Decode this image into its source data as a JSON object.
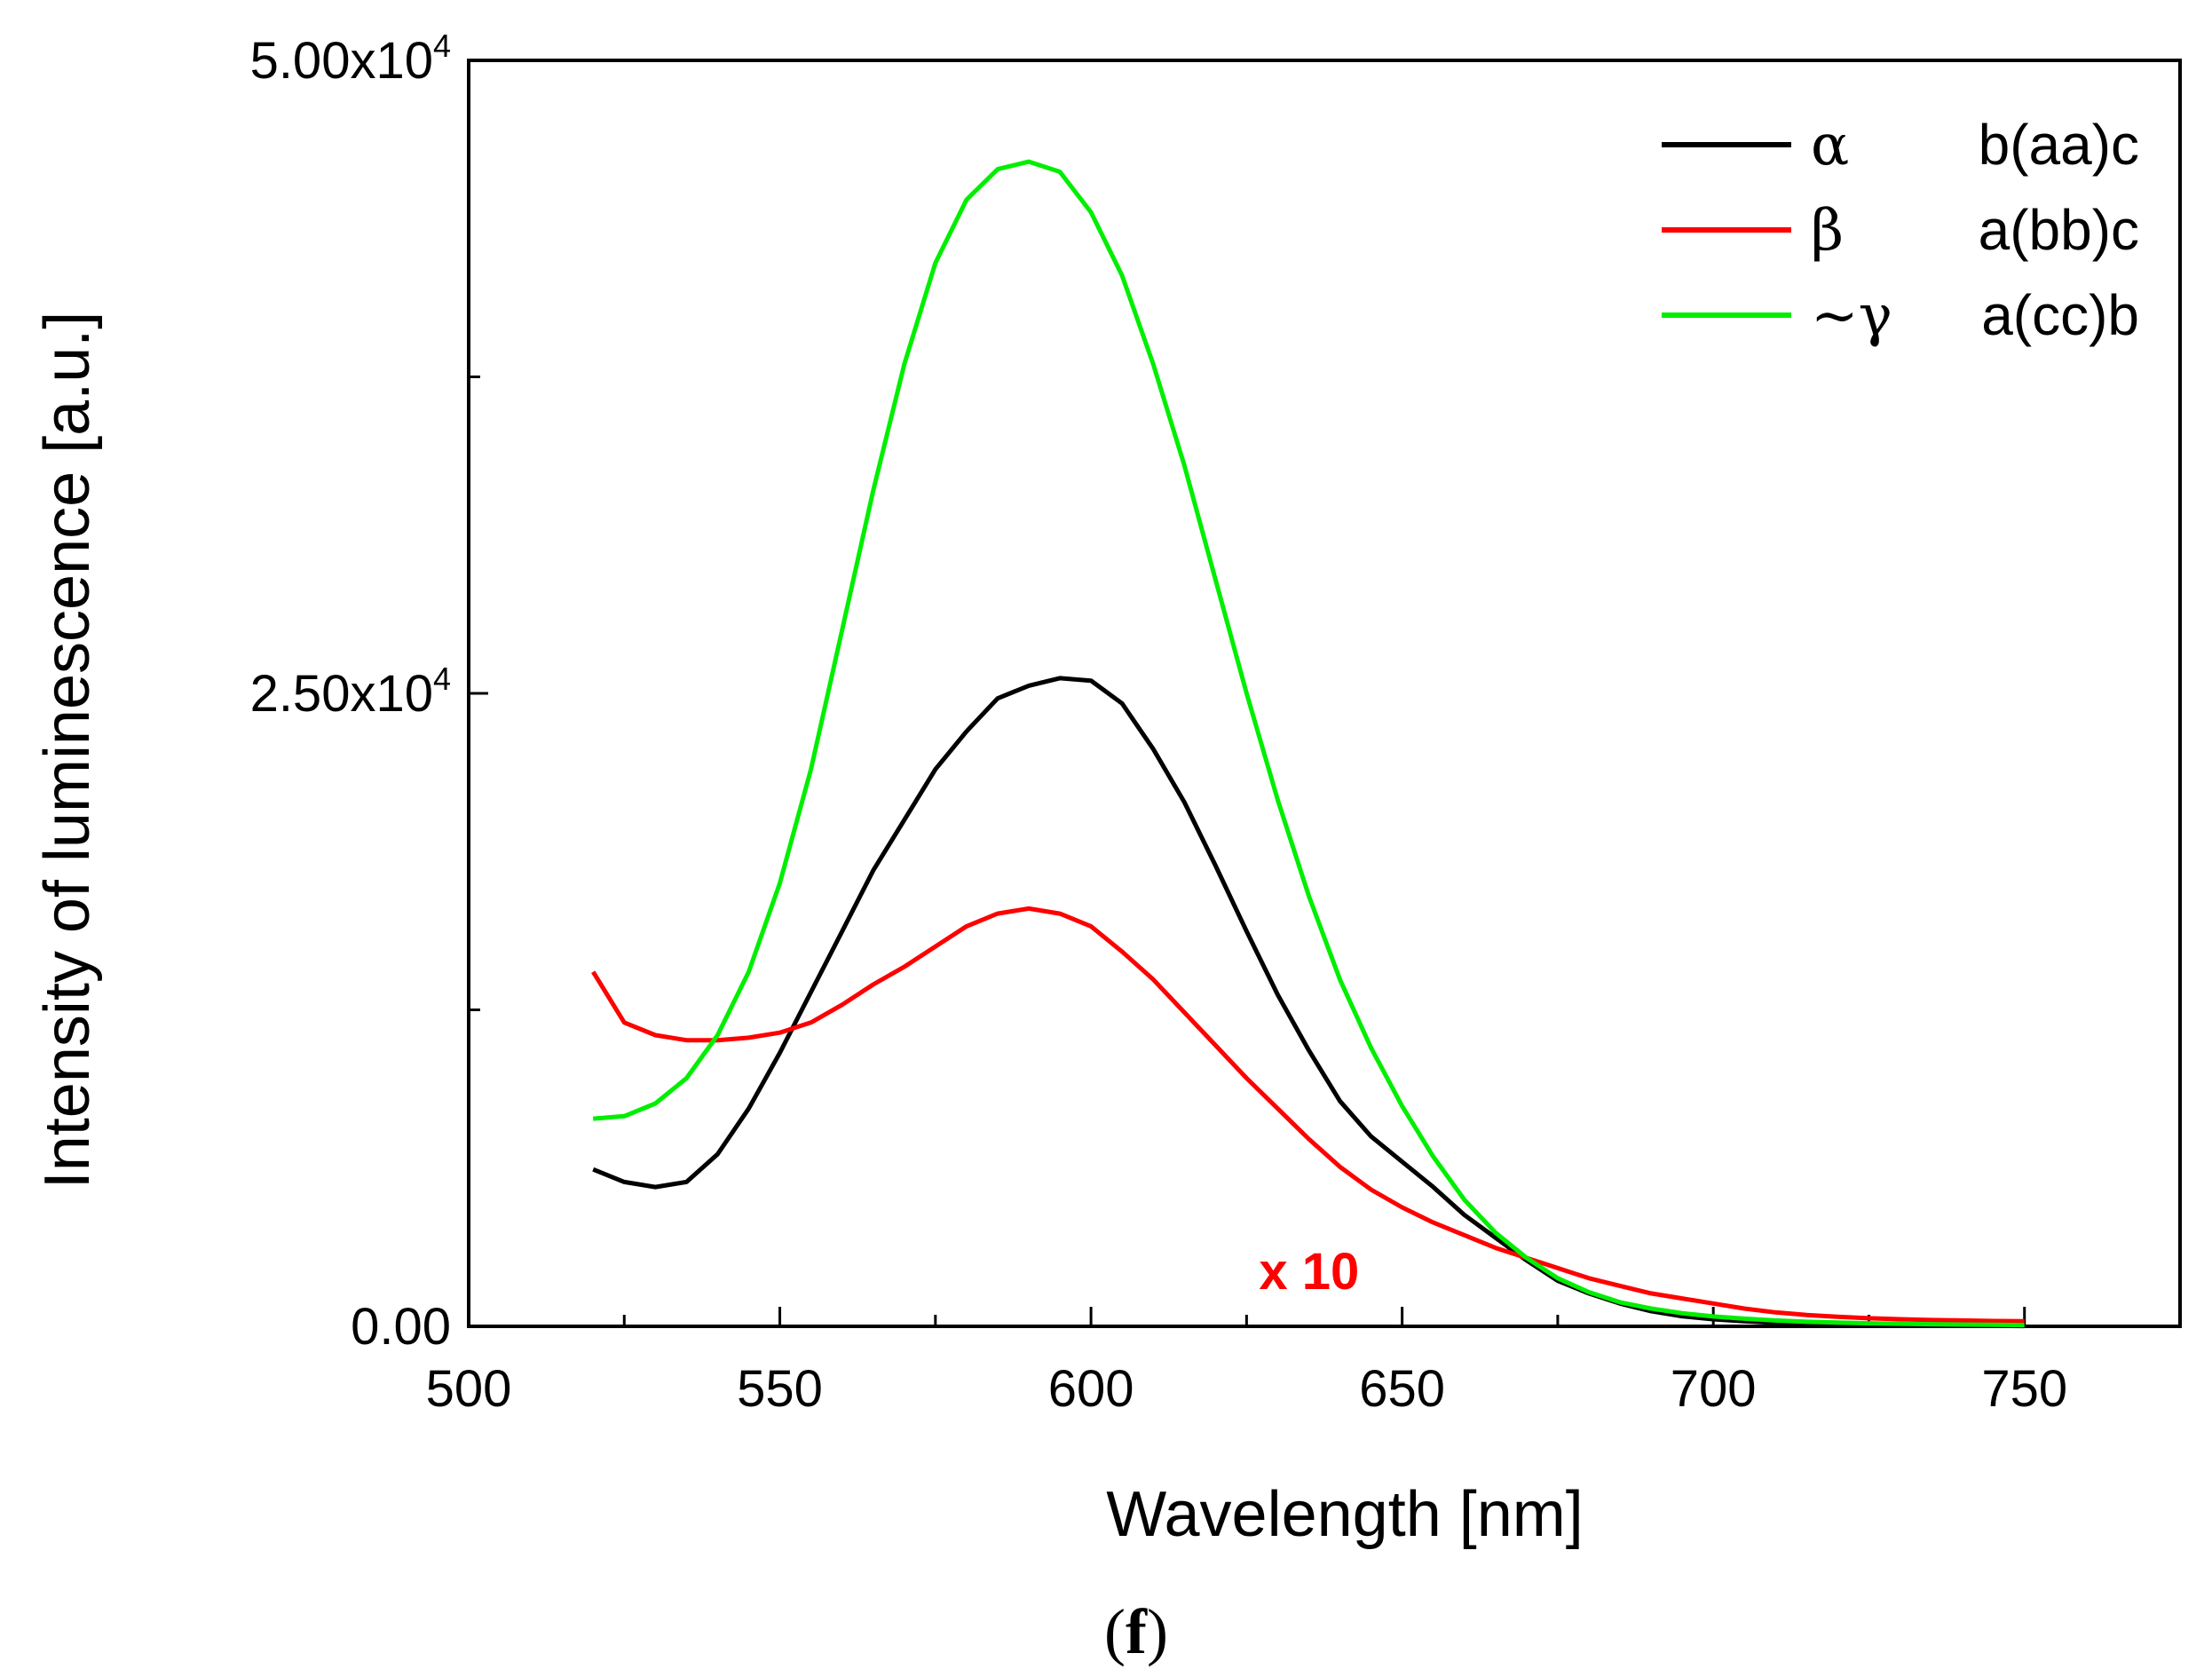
{
  "chart_data": {
    "type": "line",
    "xlabel": "Wavelength [nm]",
    "ylabel": "Intensity of luminescence [a.u.]",
    "xlim": [
      500,
      775
    ],
    "ylim": [
      0,
      50000
    ],
    "x_ticks": [
      500,
      550,
      600,
      650,
      700,
      750
    ],
    "x_tick_labels": [
      "500",
      "550",
      "600",
      "650",
      "700",
      "750"
    ],
    "y_ticks": [
      0,
      25000,
      50000
    ],
    "y_tick_labels": [
      {
        "base": "0.00",
        "exp": ""
      },
      {
        "base": "2.50x10",
        "exp": "4"
      },
      {
        "base": "5.00x10",
        "exp": "4"
      }
    ],
    "grid": false,
    "legend_position": "top-right",
    "annotation": {
      "text": "x 10",
      "color": "#ff0000",
      "x": 627,
      "y": 2000
    },
    "series": [
      {
        "name": "b(aa)c",
        "symbol": "α",
        "color": "#000000",
        "x": [
          520,
          525,
          530,
          535,
          540,
          545,
          550,
          555,
          560,
          565,
          570,
          575,
          580,
          585,
          590,
          595,
          600,
          605,
          610,
          615,
          620,
          625,
          630,
          635,
          640,
          645,
          650,
          655,
          660,
          665,
          670,
          675,
          680,
          685,
          690,
          695,
          700,
          705,
          710,
          715,
          720,
          725,
          730,
          735,
          740,
          745,
          750
        ],
        "y": [
          6200,
          5700,
          5500,
          5700,
          6800,
          8600,
          10800,
          13200,
          15600,
          18000,
          20000,
          22000,
          23500,
          24800,
          25300,
          25600,
          25500,
          24600,
          22800,
          20700,
          18200,
          15600,
          13100,
          10900,
          8900,
          7500,
          6500,
          5500,
          4400,
          3500,
          2600,
          1800,
          1300,
          900,
          600,
          400,
          280,
          200,
          140,
          100,
          70,
          50,
          40,
          30,
          25,
          20,
          15
        ]
      },
      {
        "name": "a(bb)c",
        "symbol": "β",
        "color": "#ff0000",
        "x": [
          520,
          525,
          530,
          535,
          540,
          545,
          550,
          555,
          560,
          565,
          570,
          575,
          580,
          585,
          590,
          595,
          600,
          605,
          610,
          615,
          620,
          625,
          630,
          635,
          640,
          645,
          650,
          655,
          660,
          665,
          670,
          675,
          680,
          685,
          690,
          695,
          700,
          705,
          710,
          715,
          720,
          725,
          730,
          735,
          740,
          745,
          750
        ],
        "y": [
          14000,
          12000,
          11500,
          11300,
          11300,
          11400,
          11600,
          12000,
          12700,
          13500,
          14200,
          15000,
          15800,
          16300,
          16500,
          16300,
          15800,
          14800,
          13700,
          12400,
          11100,
          9800,
          8600,
          7400,
          6300,
          5400,
          4700,
          4100,
          3600,
          3100,
          2700,
          2300,
          1900,
          1600,
          1300,
          1100,
          900,
          700,
          550,
          450,
          380,
          320,
          280,
          250,
          230,
          210,
          200
        ]
      },
      {
        "name": "a(cc)b",
        "symbol": "~γ",
        "color": "#00ee00",
        "x": [
          520,
          525,
          530,
          535,
          540,
          545,
          550,
          555,
          560,
          565,
          570,
          575,
          580,
          585,
          590,
          595,
          600,
          605,
          610,
          615,
          620,
          625,
          630,
          635,
          640,
          645,
          650,
          655,
          660,
          665,
          670,
          675,
          680,
          685,
          690,
          695,
          700,
          705,
          710,
          715,
          720,
          725,
          730,
          735,
          740,
          745,
          750
        ],
        "y": [
          8200,
          8300,
          8800,
          9800,
          11500,
          14000,
          17500,
          22000,
          27500,
          33000,
          38000,
          42000,
          44500,
          45700,
          46000,
          45600,
          44000,
          41500,
          38000,
          34000,
          29500,
          25000,
          20800,
          17000,
          13700,
          11000,
          8700,
          6700,
          5000,
          3700,
          2700,
          1900,
          1350,
          950,
          700,
          520,
          390,
          300,
          230,
          180,
          150,
          120,
          100,
          85,
          70,
          60,
          50
        ]
      }
    ]
  },
  "caption": {
    "open": "(",
    "letter": "f",
    "close": ")"
  }
}
